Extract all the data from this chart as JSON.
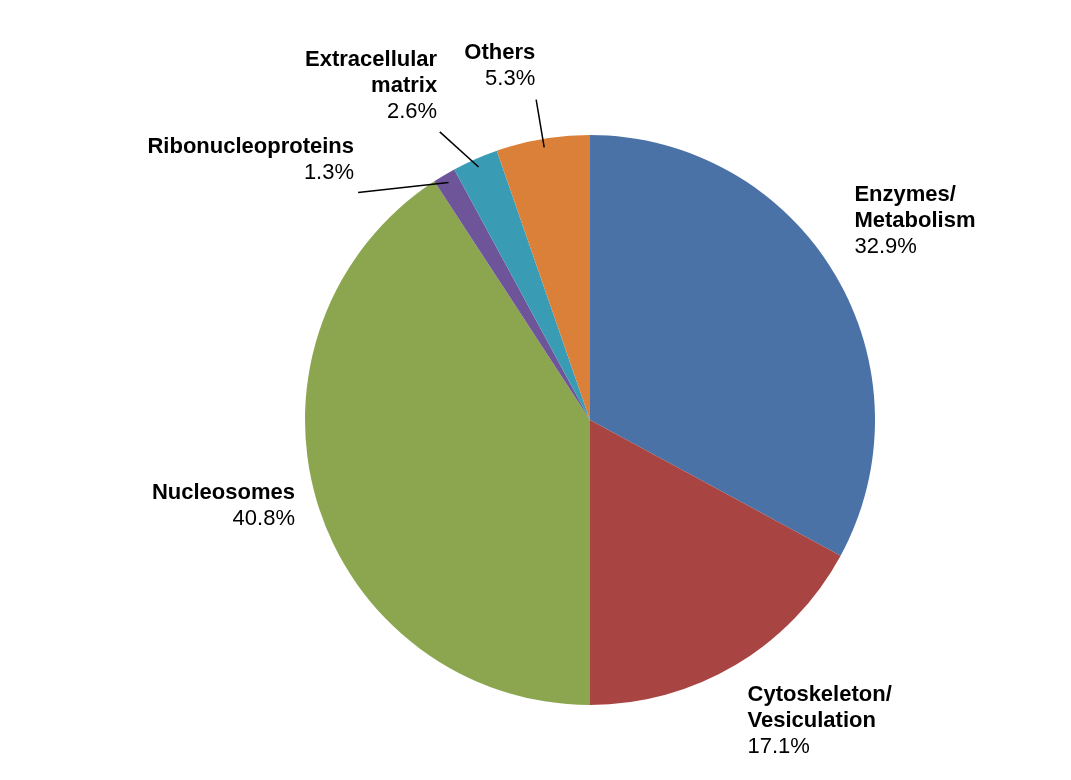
{
  "chart_data": {
    "type": "pie",
    "categories": [
      "Enzymes/\nMetabolism",
      "Cytoskeleton/\nVesiculation",
      "Nucleosomes",
      "Ribonucleoproteins",
      "Extracellular\nmatrix",
      "Others"
    ],
    "values": [
      32.9,
      17.1,
      40.8,
      1.3,
      2.6,
      5.3
    ],
    "colors": [
      "#4a72a6",
      "#a84441",
      "#8ba64f",
      "#6e559a",
      "#3a9bb5",
      "#db8038"
    ],
    "value_labels": [
      "32.9%",
      "17.1%",
      "40.8%",
      "1.3%",
      "2.6%",
      "5.3%"
    ]
  }
}
